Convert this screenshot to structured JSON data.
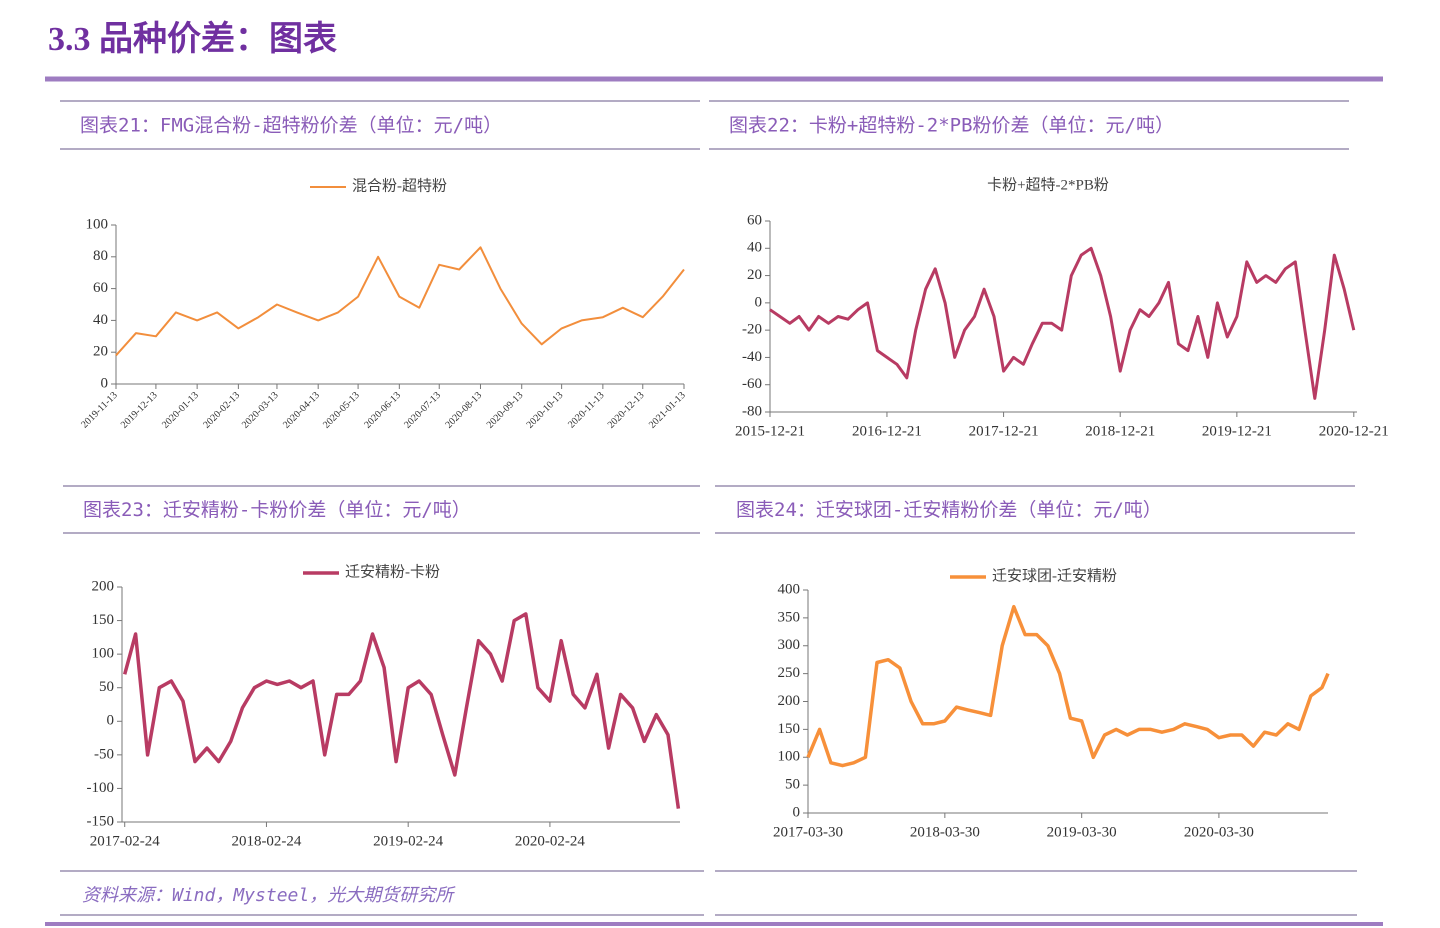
{
  "header": {
    "title": "3.3 品种价差：图表"
  },
  "chart_data": [
    {
      "type": "line",
      "title": "图表21：FMG混合粉-超特粉价差（单位：元/吨）",
      "x": [
        "2019-11-13",
        "2019-11-28",
        "2019-12-13",
        "2019-12-28",
        "2020-01-13",
        "2020-01-28",
        "2020-02-13",
        "2020-02-28",
        "2020-03-13",
        "2020-03-28",
        "2020-04-13",
        "2020-04-28",
        "2020-05-13",
        "2020-05-28",
        "2020-06-13",
        "2020-06-28",
        "2020-07-13",
        "2020-07-28",
        "2020-08-13",
        "2020-08-28",
        "2020-09-13",
        "2020-09-28",
        "2020-10-13",
        "2020-10-28",
        "2020-11-13",
        "2020-11-28",
        "2020-12-13",
        "2020-12-28",
        "2021-01-13"
      ],
      "series": [
        {
          "name": "混合粉-超特粉",
          "color": "#f28e3c",
          "values": [
            18,
            32,
            30,
            45,
            40,
            45,
            35,
            42,
            50,
            45,
            40,
            45,
            55,
            80,
            55,
            48,
            75,
            72,
            86,
            60,
            38,
            25,
            35,
            40,
            42,
            48,
            42,
            55,
            72
          ]
        }
      ],
      "xlim": [
        "2019-11-13",
        "2021-01-13"
      ],
      "xticks": [
        "2019-11-13",
        "2019-12-13",
        "2020-01-13",
        "2020-02-13",
        "2020-03-13",
        "2020-04-13",
        "2020-05-13",
        "2020-06-13",
        "2020-07-13",
        "2020-08-13",
        "2020-09-13",
        "2020-10-13",
        "2020-11-13",
        "2020-12-13",
        "2021-01-13"
      ],
      "ylim": [
        0,
        100
      ],
      "yticks": [
        0,
        20,
        40,
        60,
        80,
        100
      ],
      "legend": "top",
      "legend_line": true,
      "line_width": 2,
      "rotate_xticks": true
    },
    {
      "type": "line",
      "title": "图表22：卡粉+超特粉-2*PB粉价差（单位：元/吨）",
      "x": [
        "2015-12-21",
        "2016-01-21",
        "2016-02-21",
        "2016-03-21",
        "2016-04-21",
        "2016-05-21",
        "2016-06-21",
        "2016-07-21",
        "2016-08-21",
        "2016-09-21",
        "2016-10-21",
        "2016-11-21",
        "2016-12-21",
        "2017-01-21",
        "2017-02-21",
        "2017-03-21",
        "2017-04-21",
        "2017-05-21",
        "2017-06-21",
        "2017-07-21",
        "2017-08-21",
        "2017-09-21",
        "2017-10-21",
        "2017-11-21",
        "2017-12-21",
        "2018-01-21",
        "2018-02-21",
        "2018-03-21",
        "2018-04-21",
        "2018-05-21",
        "2018-06-21",
        "2018-07-21",
        "2018-08-21",
        "2018-09-21",
        "2018-10-21",
        "2018-11-21",
        "2018-12-21",
        "2019-01-21",
        "2019-02-21",
        "2019-03-21",
        "2019-04-21",
        "2019-05-21",
        "2019-06-21",
        "2019-07-21",
        "2019-08-21",
        "2019-09-21",
        "2019-10-21",
        "2019-11-21",
        "2019-12-21",
        "2020-01-21",
        "2020-02-21",
        "2020-03-21",
        "2020-04-21",
        "2020-05-21",
        "2020-06-21",
        "2020-07-21",
        "2020-08-21",
        "2020-09-21",
        "2020-10-21",
        "2020-11-21",
        "2020-12-21"
      ],
      "series": [
        {
          "name": "卡粉+超特-2*PB粉",
          "color": "#b83b63",
          "values": [
            -5,
            -10,
            -15,
            -10,
            -20,
            -10,
            -15,
            -10,
            -12,
            -5,
            0,
            -35,
            -40,
            -45,
            -55,
            -20,
            10,
            25,
            0,
            -40,
            -20,
            -10,
            10,
            -10,
            -50,
            -40,
            -45,
            -30,
            -15,
            -15,
            -20,
            20,
            35,
            40,
            20,
            -10,
            -50,
            -20,
            -5,
            -10,
            0,
            15,
            -30,
            -35,
            -10,
            -40,
            0,
            -25,
            -10,
            30,
            15,
            20,
            15,
            25,
            30,
            -20,
            -70,
            -20,
            35,
            10,
            -20
          ]
        }
      ],
      "xlim": [
        "2015-12-21",
        "2020-12-31"
      ],
      "xticks": [
        "2015-12-21",
        "2016-12-21",
        "2017-12-21",
        "2018-12-21",
        "2019-12-21",
        "2020-12-21"
      ],
      "ylim": [
        -80,
        60
      ],
      "yticks": [
        -80,
        -60,
        -40,
        -20,
        0,
        20,
        40,
        60
      ],
      "negative_tick_color": "#e00000",
      "legend": "top",
      "legend_line": false,
      "line_width": 3,
      "rotate_xticks": false
    },
    {
      "type": "line",
      "title": "图表23：迁安精粉-卡粉价差（单位：元/吨）",
      "x": [
        "2017-02-24",
        "2017-03-24",
        "2017-04-24",
        "2017-05-24",
        "2017-06-24",
        "2017-07-24",
        "2017-08-24",
        "2017-09-24",
        "2017-10-24",
        "2017-11-24",
        "2017-12-24",
        "2018-01-24",
        "2018-02-24",
        "2018-03-24",
        "2018-04-24",
        "2018-05-24",
        "2018-06-24",
        "2018-07-24",
        "2018-08-24",
        "2018-09-24",
        "2018-10-24",
        "2018-11-24",
        "2018-12-24",
        "2019-01-24",
        "2019-02-24",
        "2019-03-24",
        "2019-04-24",
        "2019-05-24",
        "2019-06-24",
        "2019-07-24",
        "2019-08-24",
        "2019-09-24",
        "2019-10-24",
        "2019-11-24",
        "2019-12-24",
        "2020-01-24",
        "2020-02-24",
        "2020-03-24",
        "2020-04-24",
        "2020-05-24",
        "2020-06-24",
        "2020-07-24",
        "2020-08-24",
        "2020-09-24",
        "2020-10-24",
        "2020-11-24",
        "2020-12-24",
        "2021-01-20"
      ],
      "series": [
        {
          "name": "迁安精粉-卡粉",
          "color": "#b83b63",
          "values": [
            70,
            130,
            -50,
            50,
            60,
            30,
            -60,
            -40,
            -60,
            -30,
            20,
            50,
            60,
            55,
            60,
            50,
            60,
            -50,
            40,
            40,
            60,
            130,
            80,
            -60,
            50,
            60,
            40,
            -20,
            -80,
            20,
            120,
            100,
            60,
            150,
            160,
            50,
            30,
            120,
            40,
            20,
            70,
            -40,
            40,
            20,
            -30,
            10,
            -20,
            -130
          ]
        }
      ],
      "xlim": [
        "2017-02-17",
        "2021-01-24"
      ],
      "xticks": [
        "2017-02-24",
        "2018-02-24",
        "2019-02-24",
        "2020-02-24"
      ],
      "ylim": [
        -150,
        200
      ],
      "yticks": [
        -150,
        -100,
        -50,
        0,
        50,
        100,
        150,
        200
      ],
      "negative_tick_color": "#e00000",
      "legend": "top",
      "legend_line": true,
      "line_width": 3.5,
      "rotate_xticks": false
    },
    {
      "type": "line",
      "title": "图表24：迁安球团-迁安精粉价差（单位：元/吨）",
      "x": [
        "2017-03-30",
        "2017-04-30",
        "2017-05-30",
        "2017-06-30",
        "2017-07-30",
        "2017-08-30",
        "2017-09-30",
        "2017-10-30",
        "2017-11-30",
        "2017-12-30",
        "2018-01-30",
        "2018-02-28",
        "2018-03-30",
        "2018-04-30",
        "2018-05-30",
        "2018-06-30",
        "2018-07-30",
        "2018-08-30",
        "2018-09-30",
        "2018-10-30",
        "2018-11-30",
        "2018-12-30",
        "2019-01-30",
        "2019-02-28",
        "2019-03-30",
        "2019-04-30",
        "2019-05-30",
        "2019-06-30",
        "2019-07-30",
        "2019-08-30",
        "2019-09-30",
        "2019-10-30",
        "2019-11-30",
        "2019-12-30",
        "2020-01-30",
        "2020-02-28",
        "2020-03-30",
        "2020-04-30",
        "2020-05-30",
        "2020-06-30",
        "2020-07-30",
        "2020-08-30",
        "2020-09-30",
        "2020-10-30",
        "2020-11-30",
        "2020-12-30",
        "2021-01-15"
      ],
      "series": [
        {
          "name": "迁安球团-迁安精粉",
          "color": "#f7903a",
          "values": [
            100,
            150,
            90,
            85,
            90,
            100,
            270,
            275,
            260,
            200,
            160,
            160,
            165,
            190,
            185,
            180,
            175,
            300,
            370,
            320,
            320,
            300,
            250,
            170,
            165,
            100,
            140,
            150,
            140,
            150,
            150,
            145,
            150,
            160,
            155,
            150,
            135,
            140,
            140,
            120,
            145,
            140,
            160,
            150,
            210,
            225,
            250
          ]
        }
      ],
      "xlim": [
        "2017-03-30",
        "2021-01-15"
      ],
      "xticks": [
        "2017-03-30",
        "2018-03-30",
        "2019-03-30",
        "2020-03-30"
      ],
      "ylim": [
        0,
        400
      ],
      "yticks": [
        0,
        50,
        100,
        150,
        200,
        250,
        300,
        350,
        400
      ],
      "legend": "top",
      "legend_line": true,
      "line_width": 3.5,
      "rotate_xticks": false
    }
  ],
  "source": "资料来源：Wind，Mysteel，光大期货研究所"
}
